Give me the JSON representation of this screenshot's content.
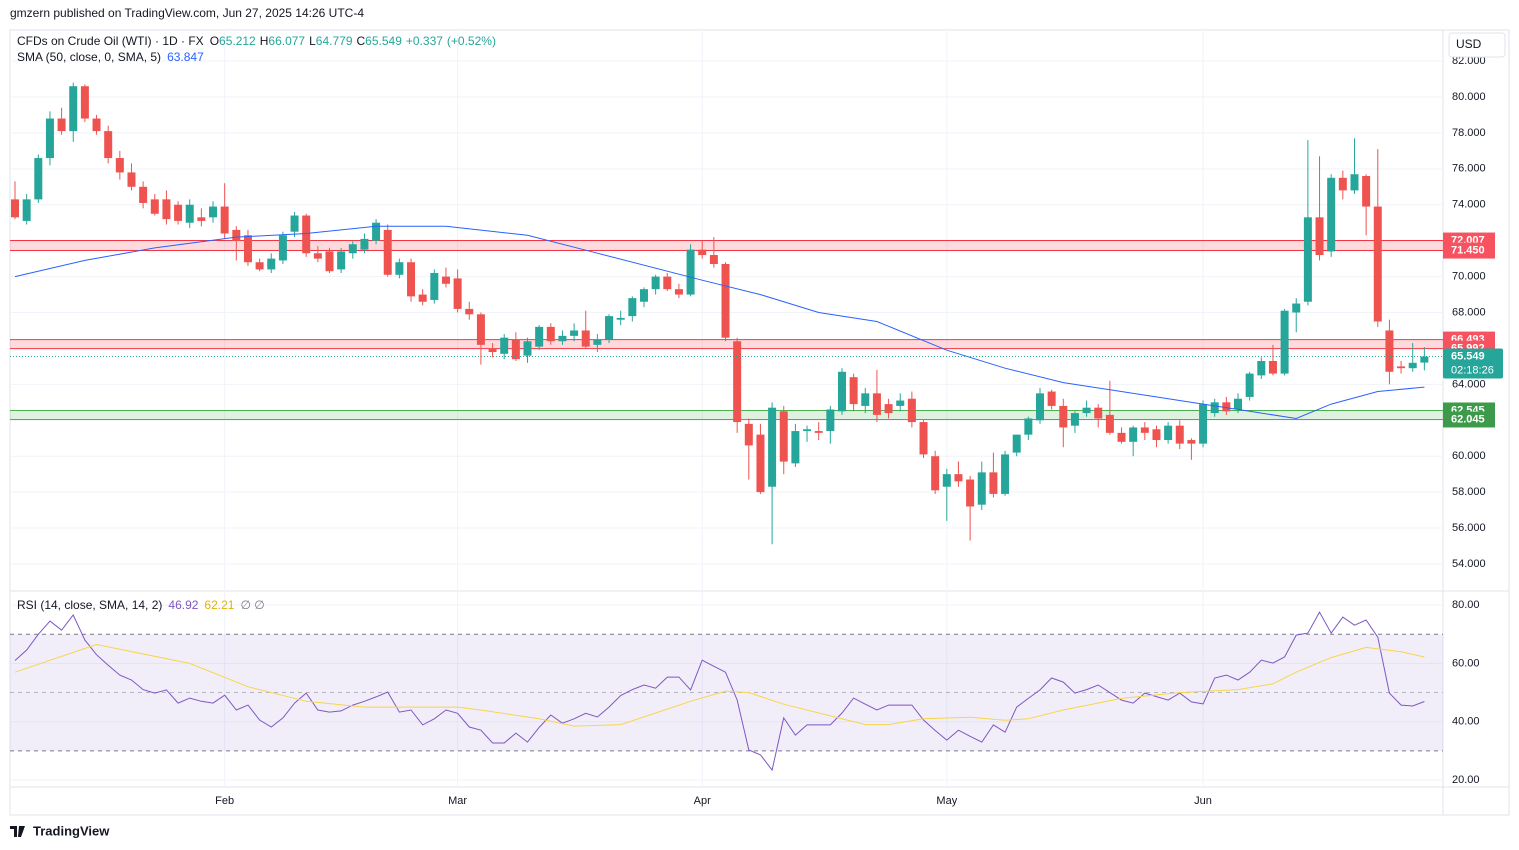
{
  "header": {
    "published": "gmzern published on TradingView.com, Jun 27, 2025 14:26 UTC-4",
    "brand": "TradingView"
  },
  "chart_data": {
    "type": "candlestick",
    "symbol": "CFDs on Crude Oil (WTI) · 1D · FX",
    "ohlc_prefixes": [
      "O",
      "H",
      "L",
      "C"
    ],
    "change": {
      "value": 0.337,
      "label": "+0.337"
    },
    "change_pct": {
      "value": 0.52,
      "label": "(+0.52%)"
    },
    "up_color": "#26a69a",
    "down_color": "#ef5350",
    "currency": "USD",
    "countdown": "02:18:26",
    "xlim": [
      -0.43,
      122.6
    ],
    "xticks": [
      {
        "value": 18,
        "label": "Feb"
      },
      {
        "value": 38,
        "label": "Mar"
      },
      {
        "value": 59,
        "label": "Apr"
      },
      {
        "value": 80,
        "label": "May"
      },
      {
        "value": 102,
        "label": "Jun"
      }
    ],
    "ylim": [
      52.55,
      83.73
    ],
    "yticks": [
      {
        "value": 54,
        "label": "54.000"
      },
      {
        "value": 56,
        "label": "56.000"
      },
      {
        "value": 58,
        "label": "58.000"
      },
      {
        "value": 60,
        "label": "60.000"
      },
      {
        "value": 62,
        "label": "62.000"
      },
      {
        "value": 64,
        "label": "64.000"
      },
      {
        "value": 66,
        "label": "66.000"
      },
      {
        "value": 68,
        "label": "68.000"
      },
      {
        "value": 70,
        "label": "70.000"
      },
      {
        "value": 72,
        "label": "72.000"
      },
      {
        "value": 74,
        "label": "74.000"
      },
      {
        "value": 76,
        "label": "76.000"
      },
      {
        "value": 78,
        "label": "78.000"
      },
      {
        "value": 80,
        "label": "80.000"
      },
      {
        "value": 82,
        "label": "82.000"
      }
    ],
    "zones": [
      {
        "low": {
          "value": 71.45,
          "label": "71.450"
        },
        "high": {
          "value": 72.007,
          "label": "72.007"
        },
        "color": "#f23645"
      },
      {
        "low": {
          "value": 65.992,
          "label": "65.992"
        },
        "high": {
          "value": 66.493,
          "label": "66.493"
        },
        "color": "#f23645"
      },
      {
        "low": {
          "value": 62.045,
          "label": "62.045"
        },
        "high": {
          "value": 62.545,
          "label": "62.545"
        },
        "color": "#4caf50"
      }
    ],
    "candles": [
      [
        74.3,
        75.3,
        73.2,
        73.3
      ],
      [
        73.1,
        74.6,
        72.9,
        74.3
      ],
      [
        74.3,
        76.8,
        74.1,
        76.6
      ],
      [
        76.6,
        79.2,
        76.2,
        78.8
      ],
      [
        78.8,
        79.4,
        77.9,
        78.1
      ],
      [
        78.1,
        80.8,
        77.5,
        80.6
      ],
      [
        80.6,
        80.7,
        78.6,
        78.8
      ],
      [
        78.8,
        79.0,
        77.9,
        78.1
      ],
      [
        78.1,
        78.4,
        76.3,
        76.6
      ],
      [
        76.6,
        77.0,
        75.4,
        75.8
      ],
      [
        75.8,
        76.3,
        74.8,
        75.0
      ],
      [
        75.0,
        75.3,
        73.8,
        74.1
      ],
      [
        74.3,
        74.6,
        73.4,
        73.5
      ],
      [
        74.3,
        74.8,
        72.9,
        73.2
      ],
      [
        74.0,
        74.2,
        72.9,
        73.1
      ],
      [
        73.0,
        74.3,
        72.7,
        74.0
      ],
      [
        73.3,
        73.8,
        72.8,
        73.1
      ],
      [
        73.3,
        74.2,
        73.0,
        73.9
      ],
      [
        73.9,
        75.2,
        72.1,
        72.4
      ],
      [
        72.6,
        72.8,
        70.9,
        72.0
      ],
      [
        72.3,
        72.6,
        70.6,
        70.8
      ],
      [
        70.8,
        71.0,
        70.3,
        70.4
      ],
      [
        70.4,
        71.3,
        70.2,
        71.0
      ],
      [
        70.9,
        72.5,
        70.7,
        72.3
      ],
      [
        72.5,
        73.6,
        72.2,
        73.4
      ],
      [
        73.4,
        73.5,
        71.1,
        71.3
      ],
      [
        71.3,
        71.7,
        70.8,
        71.0
      ],
      [
        71.4,
        71.6,
        70.2,
        70.3
      ],
      [
        70.4,
        71.6,
        70.2,
        71.4
      ],
      [
        71.3,
        72.0,
        71.0,
        71.8
      ],
      [
        71.5,
        72.4,
        71.3,
        72.1
      ],
      [
        72.0,
        73.2,
        71.8,
        73.0
      ],
      [
        72.6,
        72.9,
        70.0,
        70.1
      ],
      [
        70.1,
        71.0,
        69.9,
        70.8
      ],
      [
        70.8,
        71.0,
        68.6,
        68.9
      ],
      [
        69.0,
        69.3,
        68.4,
        68.6
      ],
      [
        68.7,
        70.4,
        68.5,
        70.2
      ],
      [
        70.0,
        70.5,
        69.4,
        69.6
      ],
      [
        69.9,
        70.4,
        68.0,
        68.2
      ],
      [
        68.2,
        68.6,
        67.6,
        67.9
      ],
      [
        67.9,
        68.0,
        65.1,
        66.2
      ],
      [
        66.0,
        66.3,
        65.5,
        65.8
      ],
      [
        65.7,
        66.8,
        65.4,
        66.6
      ],
      [
        66.5,
        66.9,
        65.3,
        65.4
      ],
      [
        65.6,
        66.6,
        65.2,
        66.4
      ],
      [
        66.1,
        67.3,
        65.9,
        67.2
      ],
      [
        67.2,
        67.4,
        66.2,
        66.4
      ],
      [
        66.4,
        67.0,
        66.2,
        66.7
      ],
      [
        66.7,
        67.4,
        66.4,
        67.0
      ],
      [
        67.0,
        68.1,
        66.0,
        66.1
      ],
      [
        66.2,
        66.8,
        65.8,
        66.5
      ],
      [
        66.5,
        67.9,
        66.3,
        67.8
      ],
      [
        67.6,
        68.1,
        67.3,
        67.7
      ],
      [
        67.8,
        68.9,
        67.5,
        68.8
      ],
      [
        68.6,
        69.4,
        68.3,
        69.3
      ],
      [
        69.3,
        70.1,
        69.0,
        70.0
      ],
      [
        70.0,
        70.2,
        69.2,
        69.3
      ],
      [
        69.3,
        69.6,
        68.8,
        69.0
      ],
      [
        69.0,
        71.8,
        68.9,
        71.5
      ],
      [
        71.5,
        72.0,
        71.0,
        71.2
      ],
      [
        71.2,
        72.2,
        70.5,
        70.7
      ],
      [
        70.7,
        70.8,
        66.4,
        66.6
      ],
      [
        66.4,
        66.6,
        61.3,
        61.9
      ],
      [
        61.8,
        62.1,
        58.7,
        60.6
      ],
      [
        61.2,
        61.8,
        57.9,
        58.0
      ],
      [
        58.3,
        63.0,
        55.1,
        62.7
      ],
      [
        62.5,
        62.8,
        59.0,
        59.7
      ],
      [
        59.6,
        61.8,
        59.4,
        61.4
      ],
      [
        61.4,
        61.7,
        60.8,
        61.5
      ],
      [
        61.4,
        61.9,
        60.9,
        61.3
      ],
      [
        61.4,
        62.8,
        60.7,
        62.6
      ],
      [
        62.5,
        64.9,
        62.3,
        64.7
      ],
      [
        64.4,
        64.6,
        62.5,
        62.9
      ],
      [
        62.8,
        63.8,
        62.4,
        63.5
      ],
      [
        63.5,
        64.8,
        61.9,
        62.3
      ],
      [
        62.9,
        63.2,
        62.1,
        62.4
      ],
      [
        62.8,
        63.5,
        62.5,
        63.1
      ],
      [
        63.2,
        63.6,
        61.6,
        61.9
      ],
      [
        61.9,
        62.0,
        59.9,
        60.1
      ],
      [
        60.0,
        60.3,
        57.9,
        58.1
      ],
      [
        58.3,
        59.3,
        56.4,
        59.0
      ],
      [
        59.0,
        59.7,
        58.3,
        58.6
      ],
      [
        58.7,
        58.9,
        55.3,
        57.2
      ],
      [
        57.3,
        59.7,
        57.0,
        59.1
      ],
      [
        59.1,
        60.2,
        57.7,
        57.9
      ],
      [
        57.9,
        60.3,
        57.8,
        60.1
      ],
      [
        60.2,
        61.2,
        60.0,
        61.2
      ],
      [
        61.2,
        62.2,
        60.9,
        62.1
      ],
      [
        62.0,
        63.8,
        61.8,
        63.5
      ],
      [
        63.6,
        63.7,
        62.6,
        62.8
      ],
      [
        62.8,
        63.2,
        60.5,
        61.6
      ],
      [
        61.7,
        62.5,
        61.3,
        62.4
      ],
      [
        62.4,
        63.1,
        62.2,
        62.7
      ],
      [
        62.7,
        62.9,
        61.6,
        62.1
      ],
      [
        62.3,
        64.2,
        61.2,
        61.3
      ],
      [
        61.3,
        61.6,
        60.7,
        60.8
      ],
      [
        60.8,
        61.7,
        60.0,
        61.6
      ],
      [
        61.6,
        61.9,
        60.9,
        61.3
      ],
      [
        61.5,
        61.7,
        60.5,
        60.9
      ],
      [
        60.9,
        61.9,
        60.7,
        61.7
      ],
      [
        61.7,
        62.0,
        60.4,
        60.7
      ],
      [
        60.9,
        61.0,
        59.8,
        60.7
      ],
      [
        60.7,
        63.1,
        60.5,
        62.9
      ],
      [
        62.4,
        63.2,
        62.2,
        63.0
      ],
      [
        63.0,
        63.3,
        62.3,
        62.5
      ],
      [
        62.6,
        63.5,
        62.4,
        63.2
      ],
      [
        63.3,
        64.7,
        63.1,
        64.6
      ],
      [
        64.5,
        65.5,
        64.3,
        65.3
      ],
      [
        65.3,
        66.2,
        64.5,
        64.6
      ],
      [
        64.6,
        68.2,
        64.5,
        68.1
      ],
      [
        68.0,
        68.8,
        66.9,
        68.5
      ],
      [
        68.6,
        77.6,
        68.4,
        73.3
      ],
      [
        73.3,
        76.7,
        70.9,
        71.2
      ],
      [
        71.4,
        75.7,
        71.1,
        75.5
      ],
      [
        75.5,
        75.9,
        74.3,
        74.8
      ],
      [
        74.8,
        77.7,
        74.6,
        75.7
      ],
      [
        75.6,
        75.7,
        72.3,
        73.9
      ],
      [
        73.9,
        77.1,
        67.2,
        67.5
      ],
      [
        67.0,
        67.6,
        64.0,
        64.7
      ],
      [
        65.0,
        65.3,
        64.6,
        64.9
      ],
      [
        64.9,
        66.3,
        64.7,
        65.2
      ],
      [
        65.212,
        66.077,
        64.779,
        65.549
      ]
    ],
    "sma": {
      "name": "SMA (50, close, 0, SMA, 5)",
      "color": "#2962ff",
      "x": [
        0,
        6,
        12,
        19,
        25,
        31,
        37,
        44,
        50,
        59,
        64,
        69,
        74,
        80,
        85,
        90,
        94,
        97,
        102,
        106,
        110,
        113,
        117,
        121
      ],
      "values": [
        70.0,
        70.9,
        71.6,
        72.2,
        72.4,
        72.8,
        72.8,
        72.3,
        71.3,
        69.8,
        69.0,
        68.0,
        67.5,
        65.9,
        64.9,
        64.1,
        63.7,
        63.4,
        62.9,
        62.5,
        62.1,
        62.9,
        63.6,
        63.847
      ]
    },
    "rsi": {
      "name": "RSI (14, close, SMA, 14, 2)",
      "color": "#7e57c2",
      "sma_color": "#f7d54a",
      "extra": "∅ ∅",
      "ylim": [
        17.6,
        84.5
      ],
      "yticks": [
        {
          "value": 20,
          "label": "20.00"
        },
        {
          "value": 40,
          "label": "40.00"
        },
        {
          "value": 60,
          "label": "60.00"
        },
        {
          "value": 80,
          "label": "80.00"
        }
      ],
      "bands": [
        70,
        50,
        30
      ],
      "values": [
        61,
        64.6,
        70,
        74.5,
        71.4,
        76.6,
        68,
        63,
        59.4,
        56,
        54.3,
        51,
        49.8,
        50.9,
        46.4,
        48.1,
        47,
        46.4,
        49.1,
        44,
        45.7,
        40.6,
        38.2,
        41.3,
        46.4,
        49.8,
        44,
        43.3,
        43.7,
        45.7,
        47,
        48.5,
        50.2,
        43.3,
        44,
        38.9,
        41,
        44,
        42.9,
        38.2,
        37.1,
        32.7,
        32.7,
        36.1,
        33,
        38,
        42.3,
        39.5,
        41,
        42.9,
        41.6,
        45,
        49,
        51,
        52.6,
        51.5,
        55.3,
        55.3,
        50.9,
        61.1,
        59,
        57,
        47.4,
        30.3,
        28.6,
        23.4,
        41.3,
        35.4,
        38.9,
        38.9,
        38.9,
        43,
        48.1,
        46,
        44,
        45.7,
        45.7,
        45.7,
        40.6,
        37,
        33.7,
        37.1,
        35,
        33,
        38.9,
        36.4,
        45,
        48,
        50.9,
        55,
        53.6,
        49.8,
        51,
        52.6,
        50,
        47.4,
        46.4,
        49.8,
        48.6,
        47.4,
        49.8,
        46.8,
        46.1,
        55,
        56,
        54.3,
        57,
        61.1,
        60.1,
        62.2,
        69.7,
        70.4,
        77.6,
        70.4,
        75.9,
        73.1,
        74.9,
        69,
        49.8,
        45.7,
        45.4,
        46.92
      ],
      "sma_x": [
        0,
        7,
        15,
        20,
        25,
        30,
        38,
        40,
        45,
        48,
        52,
        55,
        58,
        61,
        63,
        66,
        70,
        73,
        75,
        78,
        82,
        85,
        87,
        90,
        95,
        100,
        105,
        108,
        110,
        113,
        116,
        119,
        121
      ],
      "sma_values": [
        57,
        66.5,
        60,
        52,
        47,
        45,
        45,
        44,
        41,
        38.5,
        39,
        43,
        47,
        50.5,
        50,
        46,
        42,
        39,
        39,
        41,
        41.5,
        40.5,
        41,
        44,
        48,
        50,
        51,
        53,
        57,
        62,
        65.5,
        64,
        62.21
      ]
    }
  }
}
